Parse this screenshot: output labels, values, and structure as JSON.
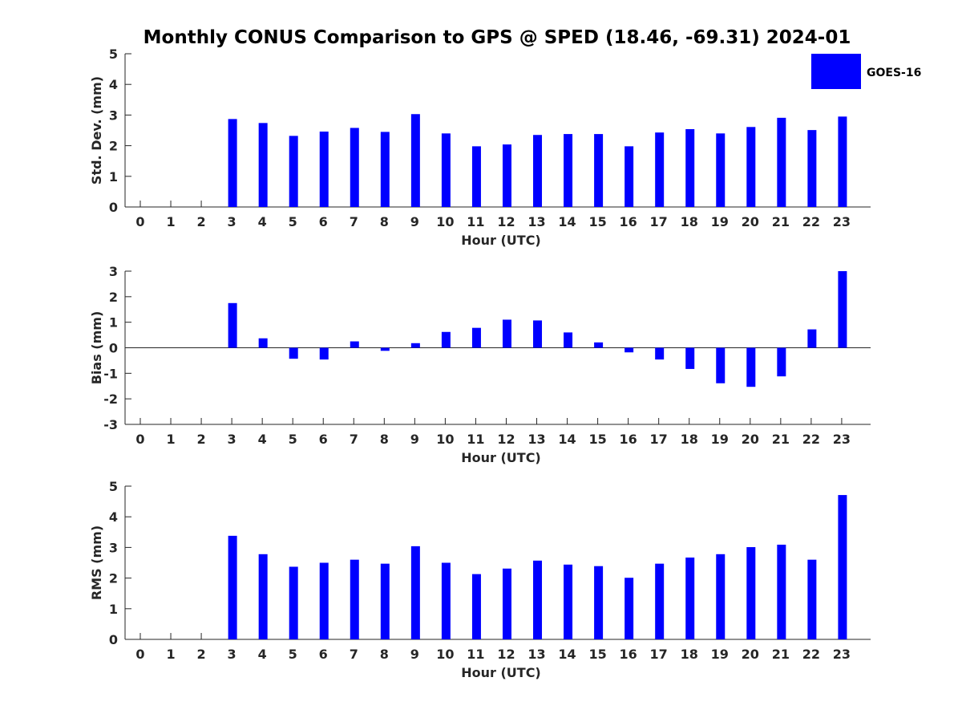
{
  "title": "Monthly CONUS Comparison to GPS @ SPED (18.46, -69.31) 2024-01",
  "legend": {
    "label": "GOES-16",
    "color": "#0000ff"
  },
  "chart_data": [
    {
      "type": "bar",
      "ylabel": "Std. Dev. (mm)",
      "xlabel": "Hour (UTC)",
      "ylim": [
        0,
        5
      ],
      "yticks": [
        0,
        1,
        2,
        3,
        4,
        5
      ],
      "categories": [
        "0",
        "1",
        "2",
        "3",
        "4",
        "5",
        "6",
        "7",
        "8",
        "9",
        "10",
        "11",
        "12",
        "13",
        "14",
        "15",
        "16",
        "17",
        "18",
        "19",
        "20",
        "21",
        "22",
        "23"
      ],
      "series": [
        {
          "name": "GOES-16",
          "values": [
            null,
            null,
            null,
            2.87,
            2.74,
            2.32,
            2.46,
            2.58,
            2.45,
            3.03,
            2.4,
            1.98,
            2.04,
            2.35,
            2.38,
            2.38,
            1.98,
            2.43,
            2.54,
            2.4,
            2.61,
            2.91,
            2.51,
            2.95
          ]
        }
      ]
    },
    {
      "type": "bar",
      "ylabel": "Bias (mm)",
      "xlabel": "Hour (UTC)",
      "ylim": [
        -3,
        3
      ],
      "yticks": [
        -3,
        -2,
        -1,
        0,
        1,
        2,
        3
      ],
      "categories": [
        "0",
        "1",
        "2",
        "3",
        "4",
        "5",
        "6",
        "7",
        "8",
        "9",
        "10",
        "11",
        "12",
        "13",
        "14",
        "15",
        "16",
        "17",
        "18",
        "19",
        "20",
        "21",
        "22",
        "23"
      ],
      "series": [
        {
          "name": "GOES-16",
          "values": [
            null,
            null,
            null,
            1.75,
            0.37,
            -0.43,
            -0.46,
            0.25,
            -0.12,
            0.18,
            0.62,
            0.78,
            1.1,
            1.07,
            0.6,
            0.21,
            -0.18,
            -0.46,
            -0.83,
            -1.39,
            -1.53,
            -1.12,
            0.72,
            3.0
          ]
        }
      ]
    },
    {
      "type": "bar",
      "ylabel": "RMS (mm)",
      "xlabel": "Hour (UTC)",
      "ylim": [
        0,
        5
      ],
      "yticks": [
        0,
        1,
        2,
        3,
        4,
        5
      ],
      "categories": [
        "0",
        "1",
        "2",
        "3",
        "4",
        "5",
        "6",
        "7",
        "8",
        "9",
        "10",
        "11",
        "12",
        "13",
        "14",
        "15",
        "16",
        "17",
        "18",
        "19",
        "20",
        "21",
        "22",
        "23"
      ],
      "series": [
        {
          "name": "GOES-16",
          "values": [
            null,
            null,
            null,
            3.38,
            2.78,
            2.37,
            2.5,
            2.6,
            2.47,
            3.04,
            2.5,
            2.13,
            2.31,
            2.57,
            2.44,
            2.39,
            2.01,
            2.47,
            2.67,
            2.78,
            3.01,
            3.09,
            2.6,
            4.71
          ]
        }
      ]
    }
  ]
}
